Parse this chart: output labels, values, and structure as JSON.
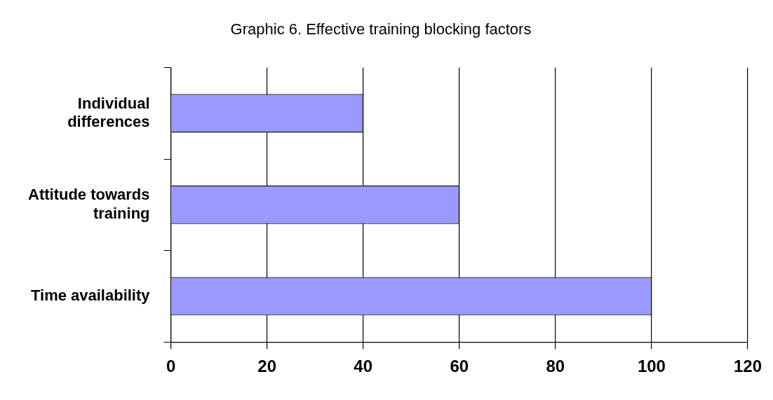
{
  "chart_data": {
    "type": "bar",
    "orientation": "horizontal",
    "title": "Graphic 6. Effective training blocking factors",
    "categories": [
      "Individual differences",
      "Attitude towards training",
      "Time availability"
    ],
    "values": [
      40,
      60,
      100
    ],
    "color": "#9999ff",
    "xlim": [
      0,
      120
    ],
    "xticks": [
      0,
      20,
      40,
      60,
      80,
      100,
      120
    ],
    "grid": "x",
    "legend": false
  }
}
